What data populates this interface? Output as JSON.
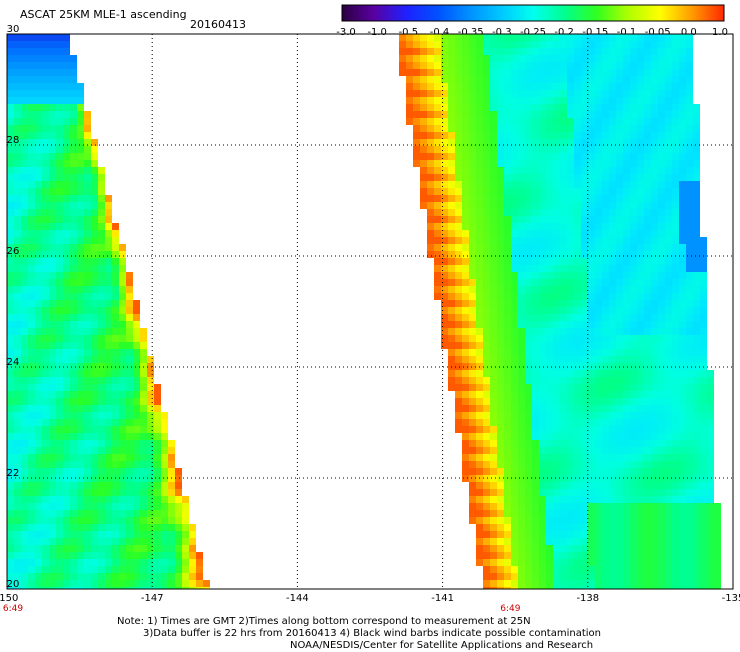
{
  "header": {
    "title": "ASCAT 25KM MLE-1 ascending",
    "date": "20160413"
  },
  "colorbar": {
    "labels": [
      "-3.0",
      "-1.0",
      "-0.5",
      "-0.4",
      "-0.35",
      "-0.3",
      "-0.25",
      "-0.2",
      "-0.15",
      "-0.1",
      "-0.05",
      "0.0",
      "1.0"
    ],
    "colors": [
      "#2a0040",
      "#5a00a0",
      "#2020ff",
      "#0050ff",
      "#0090ff",
      "#00c8ff",
      "#00ffee",
      "#00ff90",
      "#30ff20",
      "#b0ff00",
      "#ffff00",
      "#ff9a00",
      "#ff2800"
    ]
  },
  "map": {
    "lon_range": [
      -150,
      -135
    ],
    "lat_range": [
      20,
      30
    ],
    "lon_ticks": [
      "-150",
      "-147",
      "-144",
      "-141",
      "-138",
      "-135"
    ],
    "lat_ticks": [
      "30",
      "28",
      "26",
      "24",
      "22",
      "20"
    ],
    "time_labels": [
      "6:49",
      "6:49"
    ],
    "swaths": [
      {
        "name": "west-swath",
        "lat": [
          20,
          30
        ],
        "west_edge_lon": [
          -150,
          -150
        ],
        "east_edge_lon": [
          -145.9,
          -148.8
        ]
      },
      {
        "name": "east-swath",
        "lat": [
          20,
          30
        ],
        "west_edge_lon": [
          -140.1,
          -141.9
        ],
        "east_edge_lon": [
          -135.3,
          -135.9
        ]
      }
    ]
  },
  "notes": [
    "Note: 1) Times are GMT 2)Times along bottom correspond to measurement at 25N",
    "3)Data buffer is 22 hrs from 20160413 4) Black wind barbs indicate possible contamination",
    "NOAA/NESDIS/Center for Satellite Applications and Research"
  ],
  "colors": {
    "axis": "#000000",
    "time_label": "#cc0000",
    "background": "#ffffff"
  }
}
